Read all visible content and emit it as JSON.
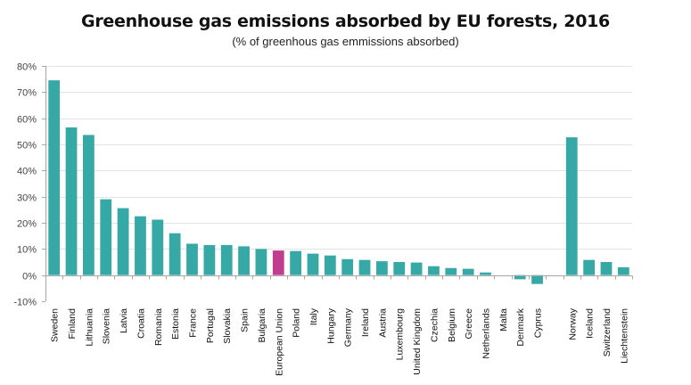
{
  "chart_data": {
    "type": "bar",
    "title": "Greenhouse gas emissions absorbed by EU forests, 2016",
    "subtitle": "(% of greenhous gas emmissions absorbed)",
    "xlabel": "",
    "ylabel": "",
    "ylim": [
      -10,
      80
    ],
    "yticks": [
      -10,
      0,
      10,
      20,
      30,
      40,
      50,
      60,
      70,
      80
    ],
    "ytick_labels": [
      "-10%",
      "0%",
      "10%",
      "20%",
      "30%",
      "40%",
      "50%",
      "60%",
      "70%",
      "80%"
    ],
    "grid": true,
    "legend": "none",
    "colors": {
      "default": "#36A9A6",
      "highlight": "#C13D8F",
      "grid": "#E3E3E3",
      "axis": "#A6A6A6"
    },
    "categories": [
      "Sweden",
      "Finland",
      "Lithuania",
      "Slovenia",
      "Latvia",
      "Croatia",
      "Romania",
      "Estonia",
      "France",
      "Portugal",
      "Slovakia",
      "Spain",
      "Bulgaria",
      "European Union",
      "Poland",
      "Italy",
      "Hungary",
      "Germany",
      "Ireland",
      "Austria",
      "Luxembourg",
      "United Kingdom",
      "Czechia",
      "Belgium",
      "Greece",
      "Netherlands",
      "Malta",
      "Denmark",
      "Cyprus",
      "",
      "Norway",
      "Iceland",
      "Switzerland",
      "Liechtenstein"
    ],
    "values": [
      74.5,
      56.5,
      53.6,
      29.0,
      25.6,
      22.5,
      21.2,
      16.0,
      12.0,
      11.5,
      11.5,
      11.0,
      10.0,
      9.4,
      9.2,
      8.2,
      7.5,
      6.1,
      5.8,
      5.3,
      5.0,
      4.8,
      3.4,
      2.7,
      2.4,
      1.0,
      0.0,
      -1.6,
      -3.4,
      null,
      52.7,
      5.8,
      5.0,
      3.0
    ],
    "highlight_category": "European Union"
  }
}
